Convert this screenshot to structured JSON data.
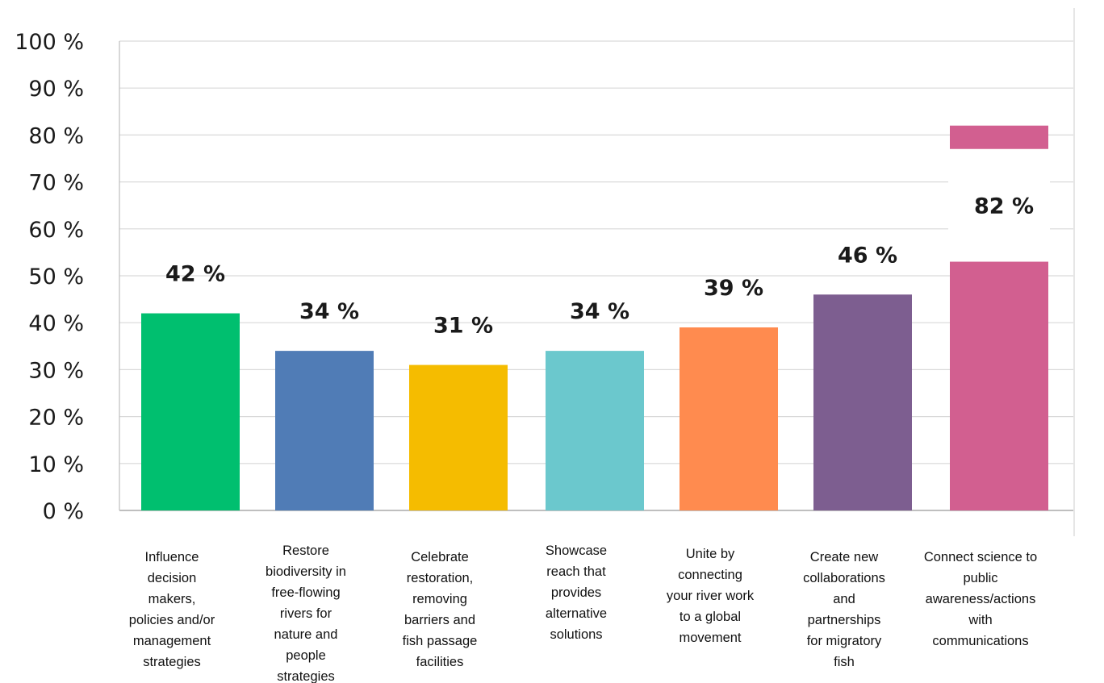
{
  "chart_data": {
    "type": "bar",
    "title": "",
    "xlabel": "",
    "ylabel": "",
    "ylim": [
      0,
      100
    ],
    "y_ticks": [
      "0 %",
      "10 %",
      "20 %",
      "30 %",
      "40 %",
      "50 %",
      "60 %",
      "70 %",
      "80 %",
      "90 %",
      "100 %"
    ],
    "grid": true,
    "legend": "none",
    "categories": [
      [
        "Influence",
        "decision",
        "makers,",
        "policies and/or",
        "management",
        "strategies"
      ],
      [
        "Restore",
        "biodiversity in",
        "free-flowing",
        "rivers for",
        "nature and",
        "people",
        "strategies"
      ],
      [
        "Celebrate",
        "restoration,",
        "removing",
        "barriers and",
        "fish passage",
        "facilities"
      ],
      [
        "Showcase",
        "reach that",
        "provides",
        "alternative",
        "solutions"
      ],
      [
        "Unite by",
        "connecting",
        "your river work",
        "to a global",
        "movement"
      ],
      [
        "Create new",
        "collaborations",
        "and",
        "partnerships",
        "for migratory",
        "fish"
      ],
      [
        "Connect science to",
        "public",
        "awareness/actions",
        "with",
        "communications"
      ]
    ],
    "values": [
      42,
      34,
      31,
      34,
      39,
      46,
      82
    ],
    "data_labels": [
      "42 %",
      "34 %",
      "31 %",
      "34 %",
      "39 %",
      "46 %",
      "82 %"
    ],
    "colors": [
      "#00BF6F",
      "#507CB6",
      "#F5BC00",
      "#6BC8CD",
      "#FF8B4F",
      "#7D5E90",
      "#D25F90"
    ],
    "grid_color": "#d9d9d9",
    "axis_color": "#bfbfbf"
  }
}
